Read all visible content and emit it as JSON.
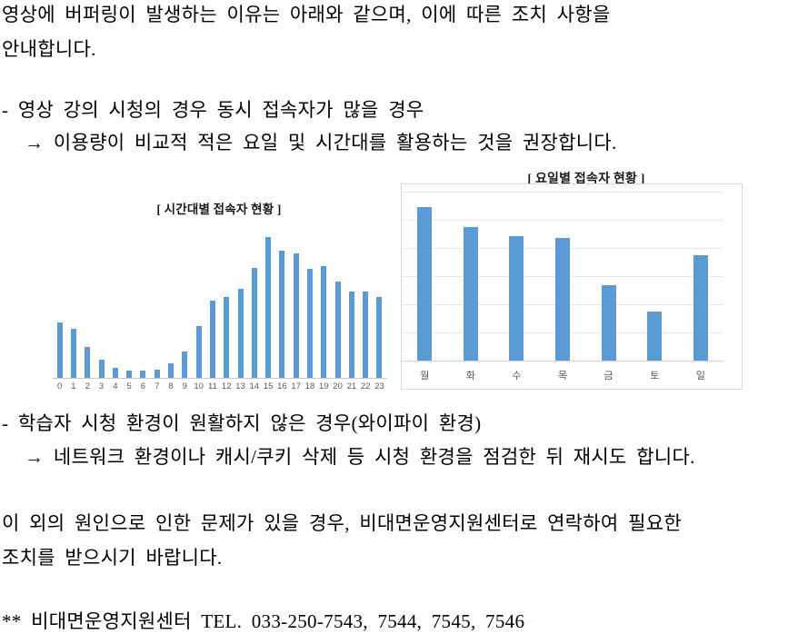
{
  "document": {
    "intro_line1": "영상에 버퍼링이 발생하는 이유는 아래와 같으며, 이에 따른 조치 사항을",
    "intro_line2": "안내합니다.",
    "bullet1": "- 영상 강의 시청의 경우 동시 접속자가 많을 경우",
    "bullet1_action": "→ 이용량이 비교적 적은 요일 및 시간대를 활용하는 것을 권장합니다.",
    "bullet2": "- 학습자 시청 환경이 원활하지 않은 경우(와이파이 환경)",
    "bullet2_action": "→ 네트워크 환경이나 캐시/쿠키 삭제 등 시청 환경을 점검한 뒤 재시도 합니다.",
    "closing_line1": "이 외의 원인으로 인한 문제가 있을 경우, 비대면운영지원센터로 연락하여 필요한",
    "closing_line2": "조치를 받으시기 바랍니다.",
    "contact": "** 비대면운영지원센터 TEL. 033-250-7543, 7544, 7545, 7546"
  },
  "colors": {
    "bar": "#5B9BD5",
    "gridline": "#E9E9E9",
    "axis_line": "#C8C8C8",
    "box_border": "#D9D9D9",
    "tick_label": "#595959",
    "body_text": "#000000"
  },
  "chart_data": [
    {
      "type": "bar",
      "title": "[ 시간대별 접속자 현황 ]",
      "categories": [
        "0",
        "1",
        "2",
        "3",
        "4",
        "5",
        "6",
        "7",
        "8",
        "9",
        "10",
        "11",
        "12",
        "13",
        "14",
        "15",
        "16",
        "17",
        "18",
        "19",
        "20",
        "21",
        "22",
        "23"
      ],
      "values": [
        39,
        35,
        22,
        13,
        7,
        5,
        5,
        6,
        10,
        19,
        37,
        55,
        57,
        63,
        78,
        100,
        90,
        88,
        77,
        79,
        68,
        61,
        61,
        57
      ],
      "xlabel": "",
      "ylabel": "",
      "ylim": [
        0,
        103
      ],
      "grid": false,
      "legend": false,
      "value_scale": "relative, tallest bar (15시) = 100",
      "bar_color": "#5B9BD5"
    },
    {
      "type": "bar",
      "title": "[ 요일별 접속자 현황 ]",
      "categories": [
        "월",
        "화",
        "수",
        "목",
        "금",
        "토",
        "일"
      ],
      "values": [
        100,
        87,
        81,
        80,
        49,
        32,
        69
      ],
      "xlabel": "",
      "ylabel": "",
      "ylim": [
        0,
        115
      ],
      "grid": true,
      "legend": false,
      "value_scale": "relative, tallest bar (월) = 100",
      "bar_color": "#5B9BD5"
    }
  ]
}
